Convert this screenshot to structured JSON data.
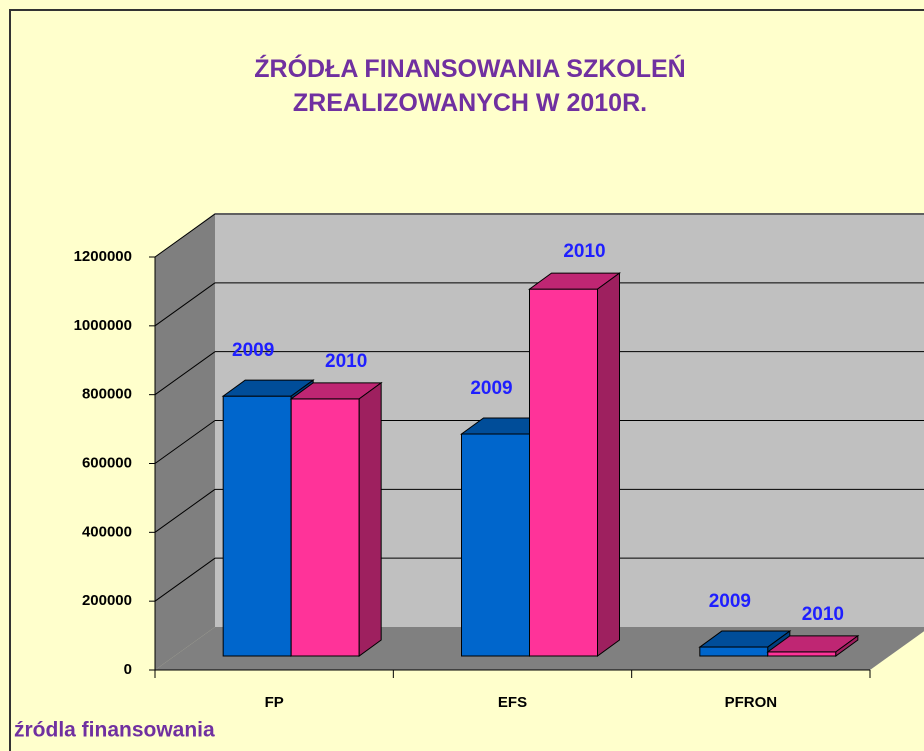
{
  "chart_data": {
    "type": "bar3d",
    "title": "ŹRÓDŁA FINANSOWANIA SZKOLEŃ ZREALIZOWANYCH W 2010R.",
    "x_label": "źródla finansowania",
    "categories": [
      "FP",
      "EFS",
      "PFRON"
    ],
    "series": [
      {
        "name": "2009",
        "color": "#0066cc",
        "values": [
          755000,
          645000,
          26000
        ]
      },
      {
        "name": "2010",
        "color": "#ff3399",
        "values": [
          747000,
          1066000,
          12000
        ]
      }
    ],
    "ylim": [
      0,
      1200000
    ],
    "yticks": [
      0,
      200000,
      400000,
      600000,
      800000,
      1000000,
      1200000
    ],
    "grid": true
  }
}
